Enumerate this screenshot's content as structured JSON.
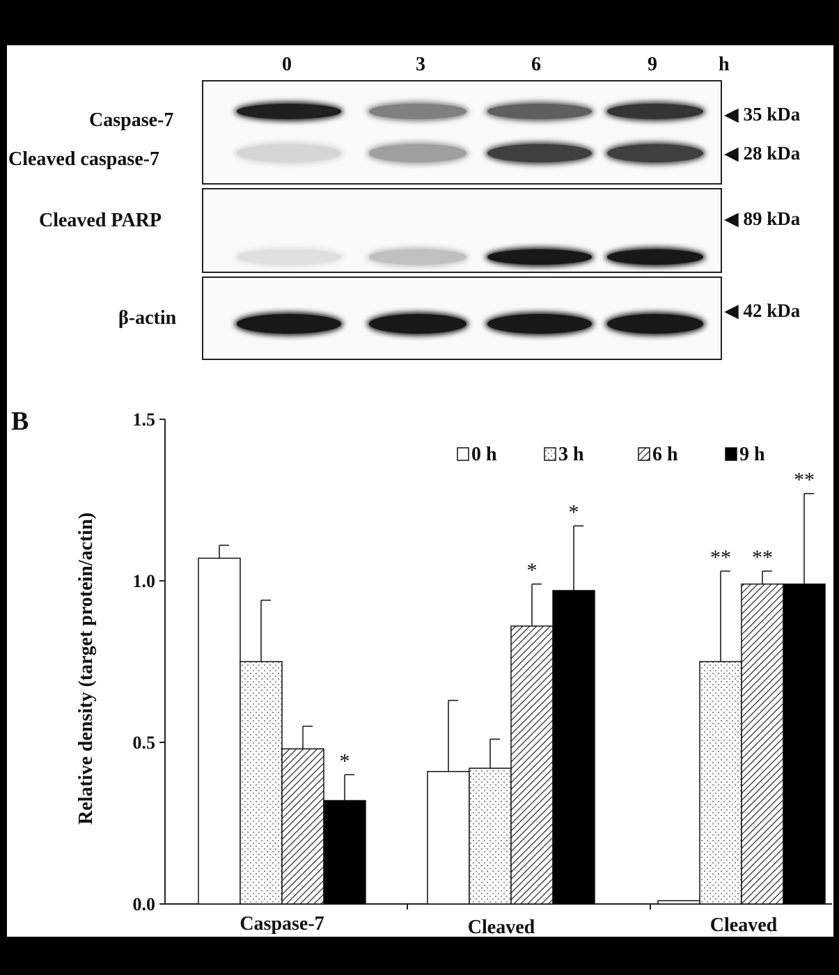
{
  "blot": {
    "lanes": [
      "0",
      "3",
      "6",
      "9"
    ],
    "lane_unit": "h",
    "rows": [
      {
        "label": "Caspase-7",
        "mw": "35 kDa"
      },
      {
        "label": "Cleaved caspase-7",
        "mw": "28 kDa"
      },
      {
        "label": "Cleaved PARP",
        "mw": "89 kDa"
      },
      {
        "label": "β-actin",
        "mw": "42 kDa"
      }
    ],
    "band_intensity": {
      "caspase7": [
        0.95,
        0.5,
        0.65,
        0.85
      ],
      "cleaved_caspase7": [
        0.1,
        0.35,
        0.8,
        0.8
      ],
      "cleaved_parp": [
        0.05,
        0.2,
        0.98,
        0.98
      ],
      "beta_actin": [
        0.98,
        0.98,
        0.98,
        0.98
      ]
    }
  },
  "panel_b_letter": "B",
  "chart_data": {
    "type": "bar",
    "categories": [
      "Caspase-7",
      "Cleaved",
      "Cleaved"
    ],
    "ylabel": "Relative density (target protein/actin)",
    "ylim": [
      0,
      1.5
    ],
    "yticks": [
      "0.0",
      "0.5",
      "1.0",
      "1.5"
    ],
    "legend_position": "top-right",
    "series": [
      {
        "name": "0 h",
        "pattern": "white",
        "values": [
          1.07,
          0.41,
          0.01
        ],
        "errors": [
          0.04,
          0.22,
          0.0
        ],
        "sig": [
          "",
          "",
          ""
        ]
      },
      {
        "name": "3 h",
        "pattern": "dots",
        "values": [
          0.75,
          0.42,
          0.75
        ],
        "errors": [
          0.19,
          0.09,
          0.28
        ],
        "sig": [
          "",
          "",
          "**"
        ]
      },
      {
        "name": "6 h",
        "pattern": "hatch",
        "values": [
          0.48,
          0.86,
          0.99
        ],
        "errors": [
          0.07,
          0.13,
          0.04
        ],
        "sig": [
          "",
          "*",
          "**"
        ]
      },
      {
        "name": "9 h",
        "pattern": "black",
        "values": [
          0.32,
          0.97,
          0.99
        ],
        "errors": [
          0.08,
          0.2,
          0.28
        ],
        "sig": [
          "*",
          "*",
          "**"
        ]
      }
    ]
  }
}
